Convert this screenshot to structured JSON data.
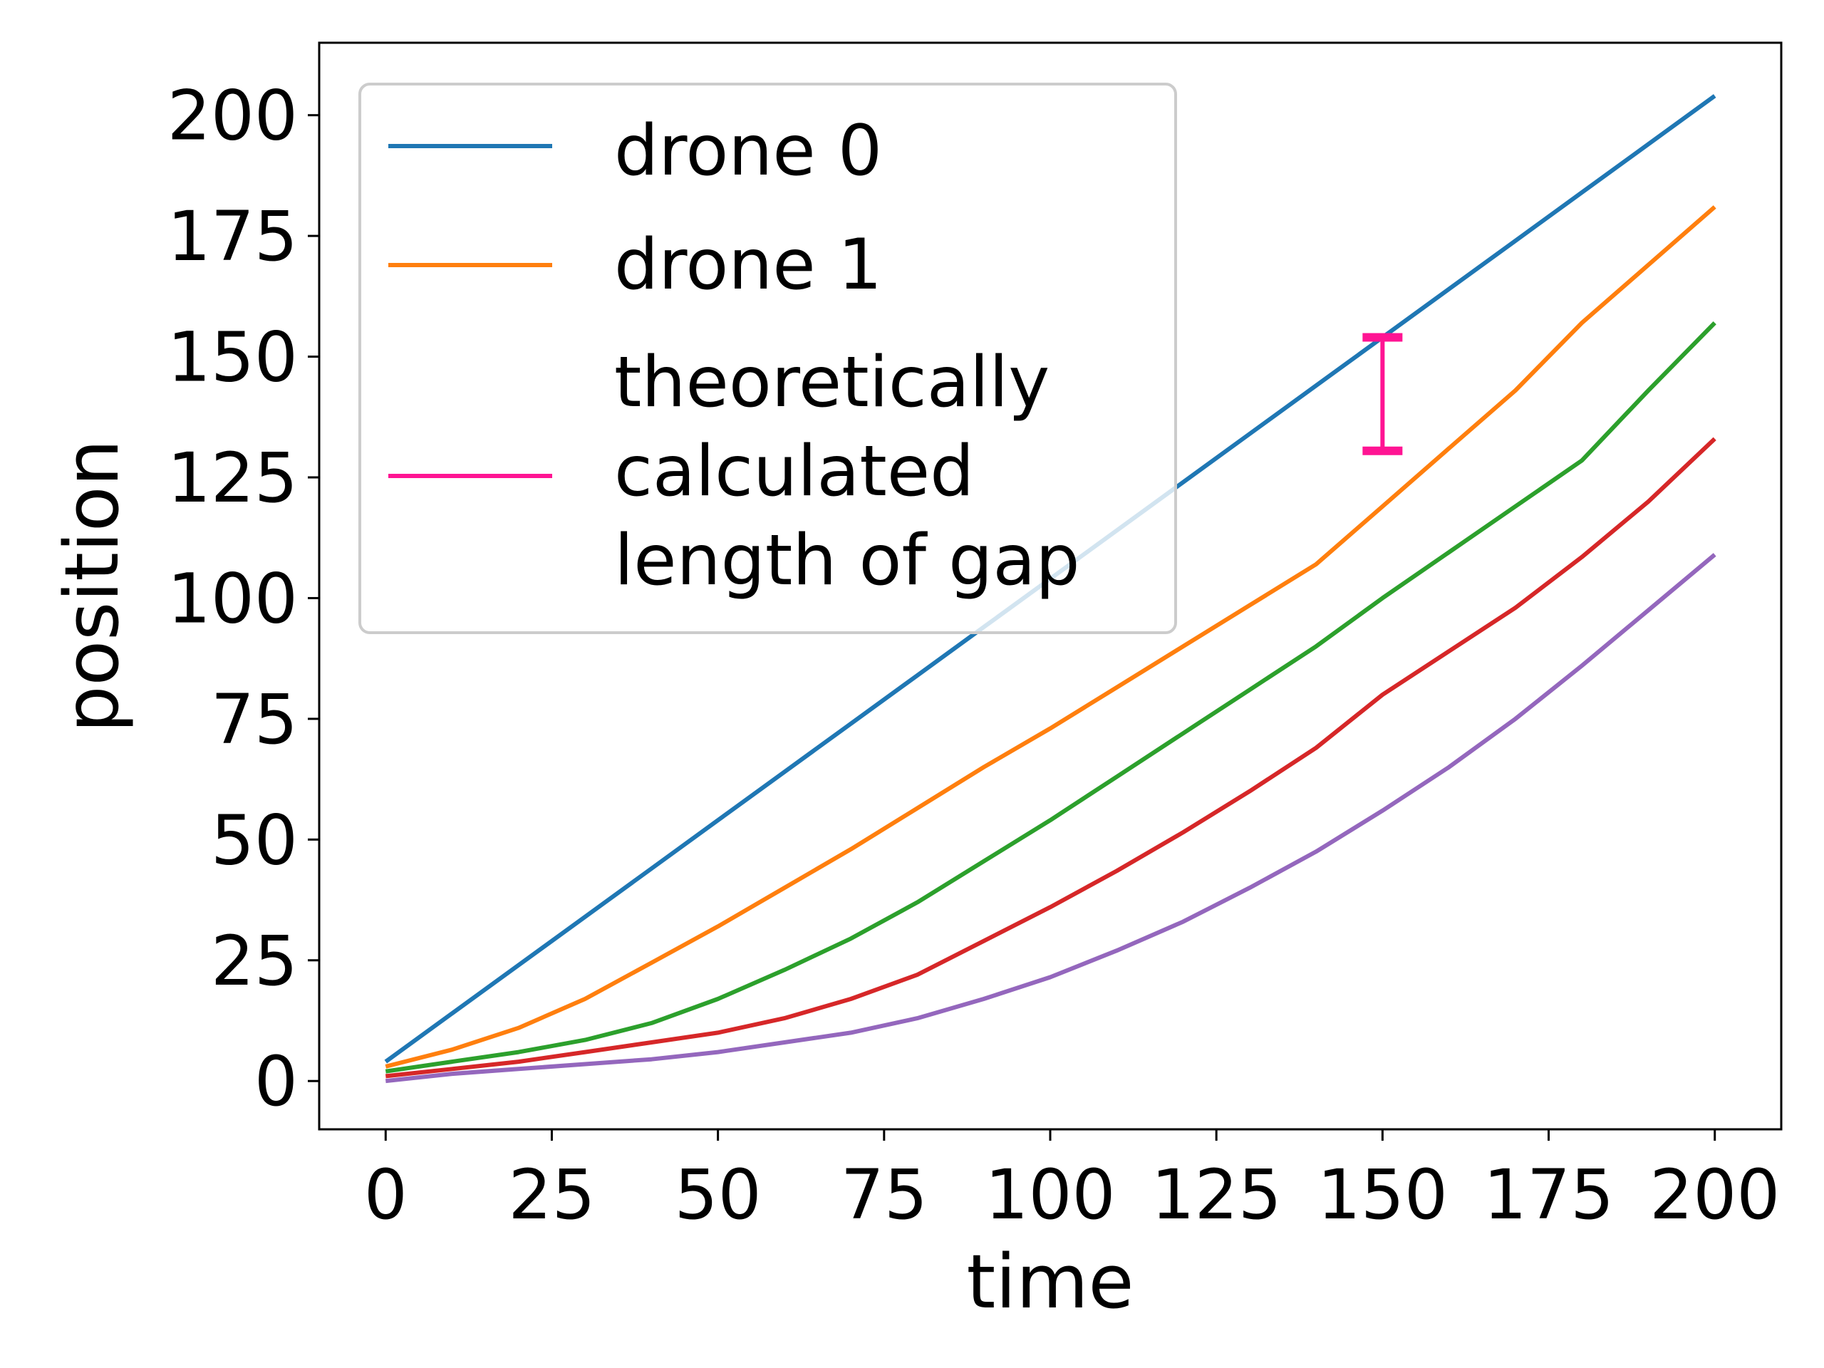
{
  "chart_data": {
    "type": "line",
    "xlabel": "time",
    "ylabel": "position",
    "xlim": [
      -10,
      210
    ],
    "ylim": [
      -10,
      215
    ],
    "x_ticks": [
      0,
      25,
      50,
      75,
      100,
      125,
      150,
      175,
      200
    ],
    "y_ticks": [
      0,
      25,
      50,
      75,
      100,
      125,
      150,
      175,
      200
    ],
    "grid": false,
    "legend_position": "top-left",
    "legend": [
      "drone 0",
      "drone 1",
      "theoretically calculated length of gap"
    ],
    "legend_lines": [
      [
        "drone 0"
      ],
      [
        "drone 1"
      ],
      [
        "theoretically",
        "calculated",
        "length of gap"
      ]
    ],
    "x": [
      0,
      10,
      20,
      30,
      40,
      50,
      60,
      70,
      80,
      90,
      100,
      110,
      120,
      130,
      140,
      150,
      160,
      170,
      180,
      190,
      200
    ],
    "series": [
      {
        "name": "drone 0",
        "color": "#1f77b4",
        "values": [
          4,
          14,
          24,
          34,
          44,
          54,
          64,
          74,
          84,
          94,
          104,
          114,
          124,
          134,
          144,
          154,
          164,
          174,
          184,
          194,
          204
        ]
      },
      {
        "name": "drone 1",
        "color": "#ff7f0e",
        "values": [
          3,
          6.5,
          11,
          17,
          24.5,
          32,
          40,
          48,
          56.5,
          65,
          73,
          81.5,
          90,
          98.5,
          107,
          119,
          131,
          143,
          157,
          169,
          181
        ]
      },
      {
        "color": "#2ca02c",
        "values": [
          2,
          4,
          6,
          8.5,
          12,
          17,
          23,
          29.5,
          37,
          45.5,
          54,
          63,
          72,
          81,
          90,
          100,
          109.5,
          119,
          128.5,
          143,
          157
        ]
      },
      {
        "color": "#d62728",
        "values": [
          1,
          2.5,
          4,
          6,
          8,
          10,
          13,
          17,
          22,
          29,
          36,
          43.5,
          51.5,
          60,
          69,
          80,
          89,
          98,
          108.5,
          120,
          133
        ]
      },
      {
        "color": "#9467bd",
        "values": [
          0,
          1.5,
          2.5,
          3.5,
          4.5,
          6,
          8,
          10,
          13,
          17,
          21.5,
          27,
          33,
          40,
          47.5,
          56,
          65,
          75,
          86,
          97.5,
          109
        ]
      }
    ],
    "annotations": [
      {
        "type": "error-bar",
        "label": "theoretically calculated length of gap",
        "color": "#ff1493",
        "x": 150,
        "y_low": 130.5,
        "y_high": 154
      }
    ]
  }
}
